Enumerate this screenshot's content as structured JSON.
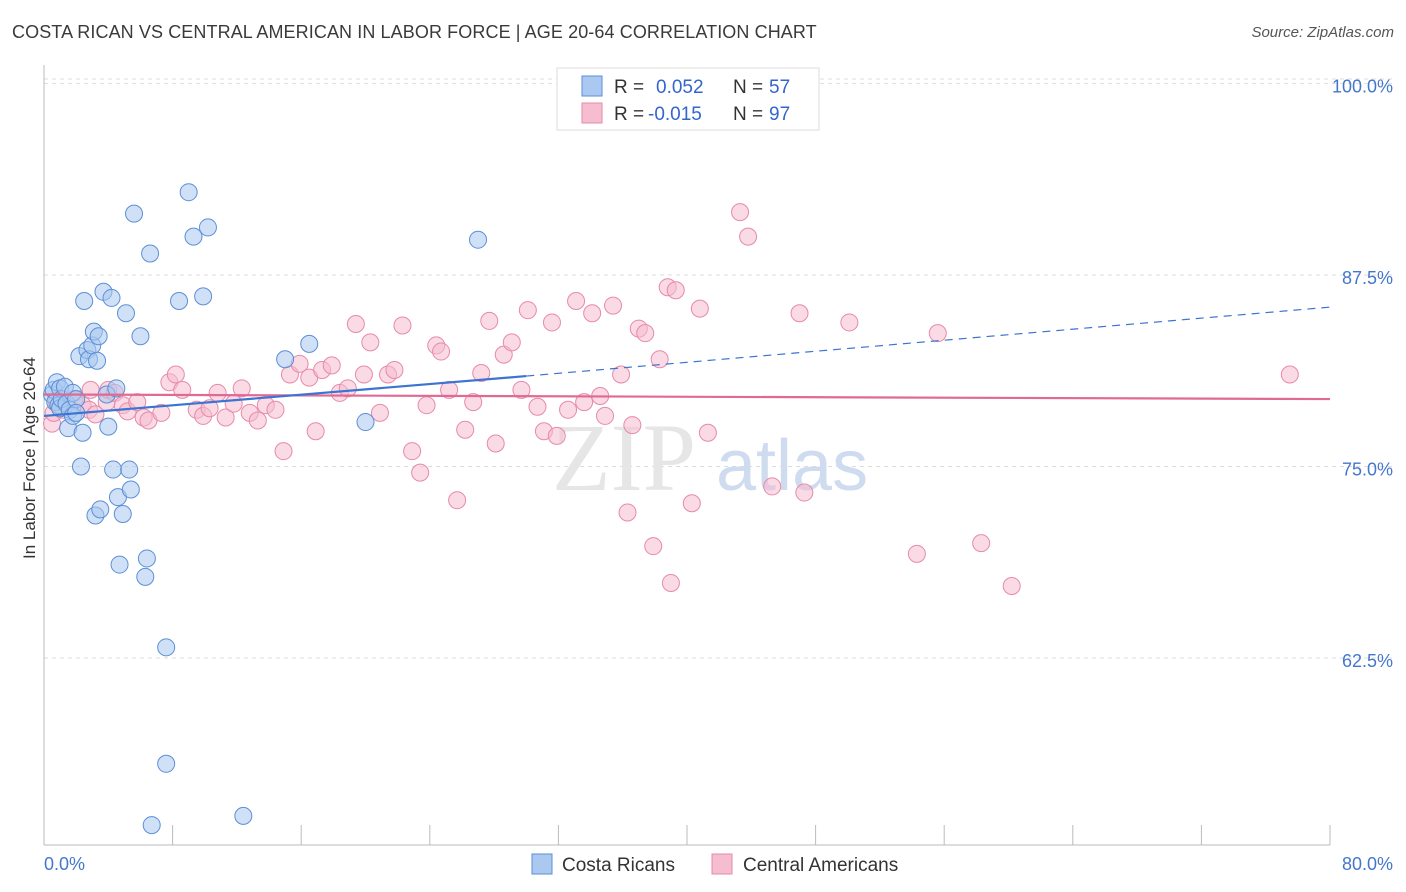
{
  "header": {
    "title": "COSTA RICAN VS CENTRAL AMERICAN IN LABOR FORCE | AGE 20-64 CORRELATION CHART",
    "source": "Source: ZipAtlas.com"
  },
  "watermark": {
    "zip": "ZIP",
    "atlas": "atlas"
  },
  "legend": {
    "rows": [
      {
        "r_label": "R =",
        "r_value": "0.052",
        "n_label": "N =",
        "n_value": "57"
      },
      {
        "r_label": "R =",
        "r_value": "-0.015",
        "n_label": "N =",
        "n_value": "97"
      }
    ]
  },
  "bottom_legend": [
    "Costa Ricans",
    "Central Americans"
  ],
  "colors": {
    "blue_fill": "#aac8f0",
    "blue_stroke": "#5b8fd6",
    "blue_line": "#3b74d1",
    "pink_fill": "#f6bcd0",
    "pink_stroke": "#e78aa9",
    "pink_line": "#e06a93",
    "grid": "#dddddd",
    "tick_text": "#4477cc"
  },
  "chart_data": {
    "type": "scatter",
    "title": "COSTA RICAN VS CENTRAL AMERICAN IN LABOR FORCE | AGE 20-64 CORRELATION CHART",
    "xlabel": "",
    "ylabel": "In Labor Force | Age 20-64",
    "xlim": [
      0,
      80
    ],
    "ylim": [
      50.3,
      101.2
    ],
    "x_tick_labels": [
      "0.0%",
      "80.0%"
    ],
    "y_ticks": [
      62.5,
      75.0,
      87.5,
      100.0
    ],
    "y_tick_labels": [
      "62.5%",
      "75.0%",
      "87.5%",
      "100.0%"
    ],
    "grid": true,
    "legend_position": "top-center",
    "series": [
      {
        "name": "Costa Ricans",
        "r": 0.052,
        "n": 57,
        "trend": {
          "x": [
            0,
            30
          ],
          "y": [
            78.3,
            80.9
          ]
        },
        "trend_dashed": {
          "x": [
            30,
            80
          ],
          "y": [
            80.9,
            85.4
          ]
        },
        "points": [
          [
            0.5,
            79.7
          ],
          [
            0.6,
            80.0
          ],
          [
            0.7,
            79.2
          ],
          [
            0.8,
            80.5
          ],
          [
            0.9,
            79.0
          ],
          [
            1.0,
            78.8
          ],
          [
            1.0,
            80.1
          ],
          [
            1.1,
            79.4
          ],
          [
            1.3,
            80.2
          ],
          [
            1.4,
            79.1
          ],
          [
            1.5,
            77.5
          ],
          [
            1.6,
            78.7
          ],
          [
            1.8,
            78.3
          ],
          [
            1.8,
            79.8
          ],
          [
            2.0,
            79.4
          ],
          [
            2.0,
            78.5
          ],
          [
            2.2,
            82.2
          ],
          [
            2.3,
            75.0
          ],
          [
            2.4,
            77.2
          ],
          [
            2.5,
            85.8
          ],
          [
            2.7,
            82.6
          ],
          [
            2.8,
            82.0
          ],
          [
            3.0,
            82.9
          ],
          [
            3.1,
            83.8
          ],
          [
            3.2,
            71.8
          ],
          [
            3.3,
            81.9
          ],
          [
            3.4,
            83.5
          ],
          [
            3.5,
            72.2
          ],
          [
            3.7,
            86.4
          ],
          [
            3.9,
            79.7
          ],
          [
            4.0,
            77.6
          ],
          [
            4.2,
            86.0
          ],
          [
            4.3,
            74.8
          ],
          [
            4.5,
            80.1
          ],
          [
            4.6,
            73.0
          ],
          [
            4.7,
            68.6
          ],
          [
            4.9,
            71.9
          ],
          [
            5.1,
            85.0
          ],
          [
            5.3,
            74.8
          ],
          [
            5.4,
            73.5
          ],
          [
            5.6,
            91.5
          ],
          [
            6.0,
            83.5
          ],
          [
            6.3,
            67.8
          ],
          [
            6.4,
            69.0
          ],
          [
            6.6,
            88.9
          ],
          [
            6.7,
            51.6
          ],
          [
            7.6,
            63.2
          ],
          [
            7.6,
            55.6
          ],
          [
            8.4,
            85.8
          ],
          [
            9.0,
            92.9
          ],
          [
            9.3,
            90.0
          ],
          [
            9.9,
            86.1
          ],
          [
            10.2,
            90.6
          ],
          [
            12.4,
            52.2
          ],
          [
            15.0,
            82.0
          ],
          [
            16.5,
            83.0
          ],
          [
            20.0,
            77.9
          ],
          [
            27.0,
            89.8
          ]
        ]
      },
      {
        "name": "Central Americans",
        "r": -0.015,
        "n": 97,
        "trend": {
          "x": [
            0,
            80
          ],
          "y": [
            79.7,
            79.4
          ]
        },
        "points": [
          [
            0.5,
            77.8
          ],
          [
            0.6,
            78.5
          ],
          [
            0.8,
            79.2
          ],
          [
            1.2,
            78.7
          ],
          [
            1.9,
            79.4
          ],
          [
            2.4,
            79.0
          ],
          [
            2.8,
            78.7
          ],
          [
            2.9,
            80.0
          ],
          [
            3.2,
            78.4
          ],
          [
            3.9,
            79.2
          ],
          [
            4.0,
            80.0
          ],
          [
            4.4,
            79.8
          ],
          [
            4.9,
            79.0
          ],
          [
            5.2,
            78.6
          ],
          [
            5.8,
            79.2
          ],
          [
            6.2,
            78.2
          ],
          [
            6.5,
            78.0
          ],
          [
            7.3,
            78.5
          ],
          [
            7.8,
            80.5
          ],
          [
            8.2,
            81.0
          ],
          [
            8.6,
            80.0
          ],
          [
            9.5,
            78.7
          ],
          [
            9.9,
            78.3
          ],
          [
            10.3,
            78.8
          ],
          [
            10.8,
            79.8
          ],
          [
            11.3,
            78.2
          ],
          [
            11.8,
            79.1
          ],
          [
            12.3,
            80.1
          ],
          [
            12.8,
            78.5
          ],
          [
            13.3,
            78.0
          ],
          [
            13.8,
            79.0
          ],
          [
            14.4,
            78.7
          ],
          [
            14.9,
            76.0
          ],
          [
            15.3,
            81.0
          ],
          [
            15.9,
            81.7
          ],
          [
            16.5,
            80.8
          ],
          [
            16.9,
            77.3
          ],
          [
            17.3,
            81.3
          ],
          [
            17.9,
            81.6
          ],
          [
            18.4,
            79.8
          ],
          [
            18.9,
            80.1
          ],
          [
            19.4,
            84.3
          ],
          [
            19.9,
            81.0
          ],
          [
            20.3,
            83.1
          ],
          [
            20.9,
            78.5
          ],
          [
            21.4,
            81.0
          ],
          [
            21.8,
            81.3
          ],
          [
            22.3,
            84.2
          ],
          [
            22.9,
            76.0
          ],
          [
            23.4,
            74.6
          ],
          [
            23.8,
            79.0
          ],
          [
            24.4,
            82.9
          ],
          [
            24.7,
            82.5
          ],
          [
            25.2,
            80.0
          ],
          [
            25.7,
            72.8
          ],
          [
            26.2,
            77.4
          ],
          [
            26.7,
            79.2
          ],
          [
            27.2,
            81.1
          ],
          [
            27.7,
            84.5
          ],
          [
            28.1,
            76.5
          ],
          [
            28.6,
            82.3
          ],
          [
            29.1,
            83.1
          ],
          [
            29.7,
            80.0
          ],
          [
            30.1,
            85.2
          ],
          [
            30.7,
            78.9
          ],
          [
            31.1,
            77.3
          ],
          [
            31.6,
            84.4
          ],
          [
            31.9,
            77.0
          ],
          [
            32.6,
            78.7
          ],
          [
            33.1,
            85.8
          ],
          [
            33.6,
            79.2
          ],
          [
            34.1,
            85.0
          ],
          [
            34.6,
            79.6
          ],
          [
            34.9,
            78.3
          ],
          [
            35.4,
            85.5
          ],
          [
            35.9,
            81.0
          ],
          [
            36.3,
            72.0
          ],
          [
            36.6,
            77.7
          ],
          [
            37.0,
            84.0
          ],
          [
            37.4,
            83.7
          ],
          [
            37.9,
            69.8
          ],
          [
            38.3,
            82.0
          ],
          [
            38.8,
            86.7
          ],
          [
            39.0,
            67.4
          ],
          [
            39.3,
            86.5
          ],
          [
            40.3,
            72.6
          ],
          [
            40.8,
            85.3
          ],
          [
            41.3,
            77.2
          ],
          [
            43.3,
            91.6
          ],
          [
            43.8,
            90.0
          ],
          [
            45.3,
            73.7
          ],
          [
            47.0,
            85.0
          ],
          [
            47.3,
            73.3
          ],
          [
            50.1,
            84.4
          ],
          [
            54.3,
            69.3
          ],
          [
            55.6,
            83.7
          ],
          [
            58.3,
            70.0
          ],
          [
            60.2,
            67.2
          ],
          [
            77.5,
            81.0
          ]
        ]
      }
    ]
  }
}
